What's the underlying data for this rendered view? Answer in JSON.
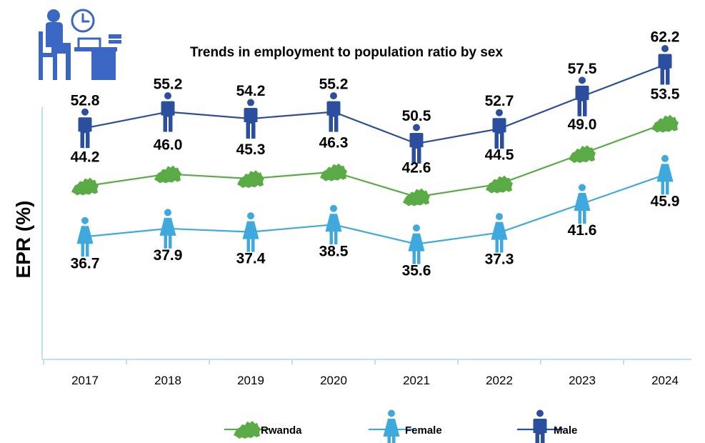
{
  "chart_data": {
    "type": "line",
    "title": "Trends in employment to population ratio by sex",
    "ylabel": "EPR (%)",
    "xlabel": "",
    "categories": [
      "2017",
      "2018",
      "2019",
      "2020",
      "2021",
      "2022",
      "2023",
      "2024"
    ],
    "ylim": [
      0,
      70
    ],
    "grid": false,
    "legend_position": "bottom-center",
    "series": [
      {
        "name": "Male",
        "color": "#2b4f9e",
        "marker": "male-figure-icon",
        "values": [
          52.8,
          55.2,
          54.2,
          55.2,
          50.5,
          52.7,
          57.5,
          62.2
        ]
      },
      {
        "name": "Rwanda",
        "color": "#5aab46",
        "marker": "rwanda-map-icon",
        "values": [
          44.2,
          46.0,
          45.3,
          46.3,
          42.6,
          44.5,
          49.0,
          53.5
        ]
      },
      {
        "name": "Female",
        "color": "#3fa9dd",
        "marker": "female-figure-icon",
        "values": [
          36.7,
          37.9,
          37.4,
          38.5,
          35.6,
          37.3,
          41.6,
          45.9
        ]
      }
    ],
    "value_labels": {
      "Male": [
        "52.8",
        "55.2",
        "54.2",
        "55.2",
        "50.5",
        "52.7",
        "57.5",
        "62.2"
      ],
      "Rwanda": [
        "44.2",
        "46.0",
        "45.3",
        "46.3",
        "42.6",
        "44.5",
        "49.0",
        "53.5"
      ],
      "Female": [
        "36.7",
        "37.9",
        "37.4",
        "38.5",
        "35.6",
        "37.3",
        "41.6",
        "45.9"
      ]
    }
  },
  "legend": {
    "items": [
      {
        "label": "Rwanda",
        "color": "#5aab46",
        "icon": "rwanda-map-icon"
      },
      {
        "label": "Female",
        "color": "#3fa9dd",
        "icon": "female-figure-icon"
      },
      {
        "label": "Male",
        "color": "#2b4f9e",
        "icon": "male-figure-icon"
      }
    ]
  },
  "header_icon": "office-worker-clock-icon",
  "colors": {
    "axis": "#bfe0f2",
    "text": "#000000",
    "icon_dark": "#2b4f9e",
    "icon_light": "#3fa9dd"
  }
}
